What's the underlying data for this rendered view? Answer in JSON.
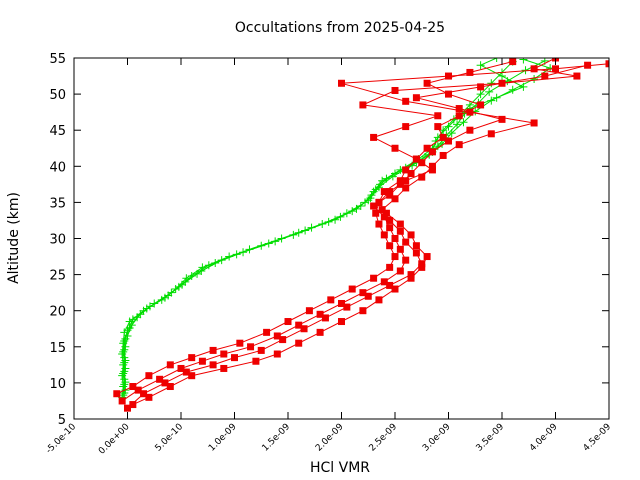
{
  "chart_data": {
    "type": "line",
    "title": "Occultations from 2025-04-25",
    "xlabel": "HCl VMR",
    "ylabel": "Altitude (km)",
    "xlim": [
      -5e-10,
      4.5e-09
    ],
    "ylim": [
      5,
      55
    ],
    "x_ticks": [
      -5e-10,
      0,
      5e-10,
      1e-09,
      1.5e-09,
      2e-09,
      2.5e-09,
      3e-09,
      3.5e-09,
      4e-09,
      4.5e-09
    ],
    "x_tick_labels": [
      "-5.0e-10",
      "0.0e+00",
      "5.0e-10",
      "1.0e-09",
      "1.5e-09",
      "2.0e-09",
      "2.5e-09",
      "3.0e-09",
      "3.5e-09",
      "4.0e-09",
      "4.5e-09"
    ],
    "y_ticks": [
      5,
      10,
      15,
      20,
      25,
      30,
      35,
      40,
      45,
      50,
      55
    ],
    "y_tick_labels": [
      "5",
      "10",
      "15",
      "20",
      "25",
      "30",
      "35",
      "40",
      "45",
      "50",
      "55"
    ],
    "grid": false,
    "legend": "none",
    "series": [
      {
        "color": "#00dd00",
        "marker": "plus",
        "profiles": [
          [
            [
              -5e-11,
              8
            ],
            [
              -4e-11,
              9.5
            ],
            [
              -5e-11,
              11
            ],
            [
              -4e-11,
              12.5
            ],
            [
              -5e-11,
              14
            ],
            [
              -4e-11,
              15.5
            ],
            [
              -3e-11,
              17
            ],
            [
              2e-11,
              18.5
            ],
            [
              1.5e-10,
              20
            ],
            [
              3.2e-10,
              21.5
            ],
            [
              4.5e-10,
              23
            ],
            [
              5.5e-10,
              24.5
            ],
            [
              7e-10,
              26
            ],
            [
              9.5e-10,
              27.5
            ],
            [
              1.25e-09,
              29
            ],
            [
              1.55e-09,
              30.5
            ],
            [
              1.82e-09,
              32
            ],
            [
              2.05e-09,
              33.5
            ],
            [
              2.22e-09,
              35
            ],
            [
              2.3e-09,
              36.5
            ],
            [
              2.38e-09,
              38
            ],
            [
              2.55e-09,
              39.5
            ],
            [
              2.72e-09,
              41
            ],
            [
              2.85e-09,
              42.5
            ],
            [
              2.9e-09,
              44
            ],
            [
              3e-09,
              45.5
            ],
            [
              3.1e-09,
              47
            ],
            [
              3.2e-09,
              48.5
            ],
            [
              3.3e-09,
              50
            ],
            [
              3.4e-09,
              51.5
            ],
            [
              3.5e-09,
              53
            ],
            [
              3.6e-09,
              54.5
            ]
          ],
          [
            [
              -4e-11,
              8.3
            ],
            [
              -3e-11,
              9.8
            ],
            [
              -4e-11,
              11.3
            ],
            [
              -3e-11,
              12.8
            ],
            [
              -4e-11,
              14.3
            ],
            [
              -3e-11,
              15.8
            ],
            [
              0,
              17.3
            ],
            [
              5e-11,
              18.8
            ],
            [
              1.8e-10,
              20.3
            ],
            [
              3.5e-10,
              21.8
            ],
            [
              4.8e-10,
              23.3
            ],
            [
              6e-10,
              24.8
            ],
            [
              7.6e-10,
              26.3
            ],
            [
              1.02e-09,
              27.8
            ],
            [
              1.32e-09,
              29.3
            ],
            [
              1.6e-09,
              30.8
            ],
            [
              1.88e-09,
              32.3
            ],
            [
              2.1e-09,
              33.8
            ],
            [
              2.25e-09,
              35.3
            ],
            [
              2.32e-09,
              36.8
            ],
            [
              2.42e-09,
              38.3
            ],
            [
              2.6e-09,
              39.8
            ],
            [
              2.78e-09,
              41.3
            ],
            [
              2.9e-09,
              42.8
            ],
            [
              2.98e-09,
              44.3
            ],
            [
              3.08e-09,
              45.8
            ],
            [
              3.15e-09,
              47.3
            ],
            [
              3.28e-09,
              48.8
            ],
            [
              3.38e-09,
              50.3
            ],
            [
              3.55e-09,
              51.8
            ],
            [
              3.72e-09,
              53.3
            ],
            [
              3.9e-09,
              54.6
            ]
          ],
          [
            [
              -3e-11,
              8.6
            ],
            [
              -2e-11,
              10.1
            ],
            [
              -3e-11,
              11.6
            ],
            [
              -2e-11,
              13.1
            ],
            [
              -3e-11,
              14.6
            ],
            [
              -2e-11,
              16.1
            ],
            [
              2e-11,
              17.6
            ],
            [
              9e-11,
              19.1
            ],
            [
              2.1e-10,
              20.6
            ],
            [
              3.8e-10,
              22.1
            ],
            [
              5.1e-10,
              23.6
            ],
            [
              6.5e-10,
              25.1
            ],
            [
              8.2e-10,
              26.6
            ],
            [
              1.08e-09,
              28.1
            ],
            [
              1.38e-09,
              29.6
            ],
            [
              1.66e-09,
              31.1
            ],
            [
              1.94e-09,
              32.6
            ],
            [
              2.14e-09,
              34.1
            ],
            [
              2.27e-09,
              35.6
            ],
            [
              2.35e-09,
              37.1
            ],
            [
              2.48e-09,
              38.6
            ],
            [
              2.66e-09,
              40.1
            ],
            [
              2.82e-09,
              41.6
            ],
            [
              2.94e-09,
              43.1
            ],
            [
              3.03e-09,
              44.6
            ],
            [
              3.14e-09,
              46.1
            ],
            [
              3.25e-09,
              47.6
            ],
            [
              3.4e-09,
              49.1
            ],
            [
              3.6e-09,
              50.6
            ],
            [
              3.8e-09,
              52.1
            ],
            [
              3.95e-09,
              53.6
            ],
            [
              3.7e-09,
              54.8
            ]
          ],
          [
            [
              -2e-11,
              9
            ],
            [
              -3e-11,
              10.5
            ],
            [
              -2e-11,
              12
            ],
            [
              -3e-11,
              13.5
            ],
            [
              -2e-11,
              15
            ],
            [
              0,
              16.5
            ],
            [
              4e-11,
              18
            ],
            [
              1.2e-10,
              19.5
            ],
            [
              2.5e-10,
              21
            ],
            [
              4.1e-10,
              22.5
            ],
            [
              5.4e-10,
              24
            ],
            [
              6.9e-10,
              25.5
            ],
            [
              8.8e-10,
              27
            ],
            [
              1.14e-09,
              28.5
            ],
            [
              1.44e-09,
              30
            ],
            [
              1.72e-09,
              31.5
            ],
            [
              1.99e-09,
              33
            ],
            [
              2.18e-09,
              34.5
            ],
            [
              2.28e-09,
              36
            ],
            [
              2.36e-09,
              37.5
            ],
            [
              2.5e-09,
              39
            ],
            [
              2.7e-09,
              40.5
            ],
            [
              2.85e-09,
              42
            ],
            [
              2.88e-09,
              43.5
            ],
            [
              2.95e-09,
              45
            ],
            [
              3.05e-09,
              46.5
            ],
            [
              3.2e-09,
              48
            ],
            [
              3.45e-09,
              49.5
            ],
            [
              3.7e-09,
              51
            ],
            [
              3.5e-09,
              52.5
            ],
            [
              3.3e-09,
              54
            ],
            [
              3.45e-09,
              55
            ]
          ]
        ]
      },
      {
        "color": "#ee0000",
        "marker": "filled-square",
        "profiles": [
          [
            [
              -1e-10,
              8.5
            ],
            [
              5e-11,
              9.5
            ],
            [
              2e-10,
              11
            ],
            [
              4e-10,
              12.5
            ],
            [
              6e-10,
              13.5
            ],
            [
              8e-10,
              14.5
            ],
            [
              1.05e-09,
              15.5
            ],
            [
              1.3e-09,
              17
            ],
            [
              1.5e-09,
              18.5
            ],
            [
              1.7e-09,
              20
            ],
            [
              1.9e-09,
              21.5
            ],
            [
              2.1e-09,
              23
            ],
            [
              2.3e-09,
              24.5
            ],
            [
              2.45e-09,
              26
            ],
            [
              2.5e-09,
              27.5
            ],
            [
              2.45e-09,
              29
            ],
            [
              2.4e-09,
              30.5
            ],
            [
              2.35e-09,
              32
            ],
            [
              2.32e-09,
              33.5
            ],
            [
              2.35e-09,
              35
            ],
            [
              2.4e-09,
              36.5
            ],
            [
              2.55e-09,
              38
            ],
            [
              2.6e-09,
              39.5
            ],
            [
              2.7e-09,
              41
            ],
            [
              2.8e-09,
              42.5
            ],
            [
              2.95e-09,
              44
            ],
            [
              2.9e-09,
              45.5
            ],
            [
              3.1e-09,
              47
            ],
            [
              3.3e-09,
              48.5
            ],
            [
              3e-09,
              50
            ],
            [
              2.8e-09,
              51.5
            ],
            [
              3.2e-09,
              53
            ],
            [
              3.6e-09,
              54.5
            ]
          ],
          [
            [
              -5e-11,
              7.5
            ],
            [
              1e-10,
              9
            ],
            [
              3e-10,
              10.5
            ],
            [
              5e-10,
              12
            ],
            [
              7e-10,
              13
            ],
            [
              9e-10,
              14
            ],
            [
              1.15e-09,
              15
            ],
            [
              1.4e-09,
              16.5
            ],
            [
              1.6e-09,
              18
            ],
            [
              1.8e-09,
              19.5
            ],
            [
              2e-09,
              21
            ],
            [
              2.2e-09,
              22.5
            ],
            [
              2.4e-09,
              24
            ],
            [
              2.55e-09,
              25.5
            ],
            [
              2.6e-09,
              27
            ],
            [
              2.55e-09,
              28.5
            ],
            [
              2.5e-09,
              30
            ],
            [
              2.45e-09,
              31.5
            ],
            [
              2.4e-09,
              33
            ],
            [
              2.3e-09,
              34.5
            ],
            [
              2.45e-09,
              36
            ],
            [
              2.55e-09,
              37.5
            ],
            [
              2.65e-09,
              39
            ],
            [
              2.75e-09,
              40.5
            ],
            [
              2.85e-09,
              42
            ],
            [
              3e-09,
              43.5
            ],
            [
              3.2e-09,
              45
            ],
            [
              3.5e-09,
              46.5
            ],
            [
              3.1e-09,
              48
            ],
            [
              2.7e-09,
              49.5
            ],
            [
              3.3e-09,
              51
            ],
            [
              3.9e-09,
              52.5
            ],
            [
              4.3e-09,
              54
            ]
          ],
          [
            [
              0,
              6.5
            ],
            [
              1.5e-10,
              8.5
            ],
            [
              3.5e-10,
              10
            ],
            [
              5.5e-10,
              11.5
            ],
            [
              8e-10,
              12.5
            ],
            [
              1e-09,
              13.5
            ],
            [
              1.25e-09,
              14.5
            ],
            [
              1.45e-09,
              16
            ],
            [
              1.65e-09,
              17.5
            ],
            [
              1.85e-09,
              19
            ],
            [
              2.05e-09,
              20.5
            ],
            [
              2.25e-09,
              22
            ],
            [
              2.45e-09,
              23.5
            ],
            [
              2.65e-09,
              25
            ],
            [
              2.75e-09,
              26.5
            ],
            [
              2.7e-09,
              28
            ],
            [
              2.6e-09,
              29.5
            ],
            [
              2.55e-09,
              31
            ],
            [
              2.45e-09,
              32.5
            ],
            [
              2.38e-09,
              34
            ],
            [
              2.5e-09,
              35.5
            ],
            [
              2.6e-09,
              37
            ],
            [
              2.75e-09,
              38.5
            ],
            [
              2.85e-09,
              40
            ],
            [
              2.95e-09,
              41.5
            ],
            [
              3.1e-09,
              43
            ],
            [
              3.4e-09,
              44.5
            ],
            [
              3.8e-09,
              46
            ],
            [
              3.2e-09,
              47.5
            ],
            [
              2.6e-09,
              49
            ],
            [
              2e-09,
              51.5
            ],
            [
              3e-09,
              52.5
            ],
            [
              4e-09,
              53.5
            ],
            [
              4.5e-09,
              54.2
            ]
          ],
          [
            [
              5e-11,
              7
            ],
            [
              2e-10,
              8
            ],
            [
              4e-10,
              9.5
            ],
            [
              6e-10,
              11
            ],
            [
              9e-10,
              12
            ],
            [
              1.2e-09,
              13
            ],
            [
              1.4e-09,
              14
            ],
            [
              1.6e-09,
              15.5
            ],
            [
              1.8e-09,
              17
            ],
            [
              2e-09,
              18.5
            ],
            [
              2.2e-09,
              20
            ],
            [
              2.35e-09,
              21.5
            ],
            [
              2.5e-09,
              23
            ],
            [
              2.65e-09,
              24.5
            ],
            [
              2.75e-09,
              26
            ],
            [
              2.8e-09,
              27.5
            ],
            [
              2.7e-09,
              29
            ],
            [
              2.65e-09,
              30.5
            ],
            [
              2.55e-09,
              32
            ],
            [
              2.42e-09,
              33.5
            ],
            [
              2.35e-09,
              35
            ],
            [
              2.45e-09,
              36.5
            ],
            [
              2.6e-09,
              38
            ],
            [
              2.85e-09,
              39.5
            ],
            [
              2.7e-09,
              41
            ],
            [
              2.5e-09,
              42.5
            ],
            [
              2.3e-09,
              44
            ],
            [
              2.6e-09,
              45.5
            ],
            [
              2.9e-09,
              47
            ],
            [
              2.2e-09,
              48.5
            ],
            [
              2.5e-09,
              50.5
            ],
            [
              3.5e-09,
              51.5
            ],
            [
              4.2e-09,
              52.5
            ],
            [
              3.8e-09,
              53.5
            ],
            [
              4e-09,
              55
            ]
          ]
        ]
      }
    ]
  }
}
